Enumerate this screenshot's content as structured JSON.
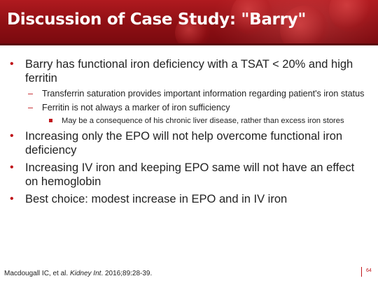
{
  "slide": {
    "title": "Discussion of Case Study: \"Barry\"",
    "bullets": [
      {
        "text": "Barry has functional iron deficiency with a TSAT < 20% and high ferritin",
        "sub": [
          {
            "text": "Transferrin saturation provides important information regarding patient's iron status"
          },
          {
            "text": "Ferritin is not always a marker of iron sufficiency",
            "sub": [
              {
                "text": "May be a consequence of his chronic liver disease, rather than excess iron stores"
              }
            ]
          }
        ]
      },
      {
        "text": "Increasing only the EPO will not help overcome functional iron deficiency"
      },
      {
        "text": "Increasing IV iron and keeping EPO same will not have an effect on hemoglobin"
      },
      {
        "text": "Best choice: modest increase in EPO and in IV iron"
      }
    ],
    "bullet_marker": "•",
    "dash_marker": "–",
    "citation": {
      "prefix": "Macdougall IC, et al. ",
      "journal": "Kidney Int",
      "suffix": ". 2016;89:28-39."
    },
    "page_number": "64"
  },
  "colors": {
    "title_bg": "#9c1419",
    "accent": "#c0161b",
    "text": "#222222"
  }
}
